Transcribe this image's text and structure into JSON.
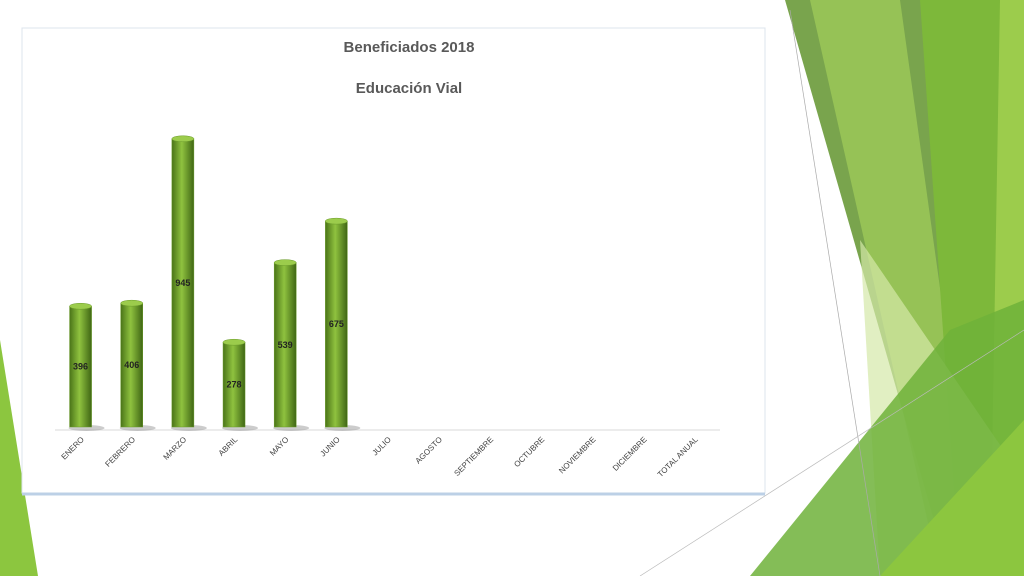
{
  "chart_data": {
    "type": "bar",
    "title": "Beneficiados 2018",
    "subtitle": "Educación Vial",
    "categories": [
      "ENERO",
      "FEBRERO",
      "MARZO",
      "ABRIL",
      "MAYO",
      "JUNIO",
      "JULIO",
      "AGOSTO",
      "SEPTIEMBRE",
      "OCTUBRE",
      "NOVIEMBRE",
      "DICIEMBRE",
      "TOTAL ANUAL"
    ],
    "values": [
      396,
      406,
      945,
      278,
      539,
      675,
      null,
      null,
      null,
      null,
      null,
      null,
      null
    ],
    "color": "#6a9a2a"
  }
}
